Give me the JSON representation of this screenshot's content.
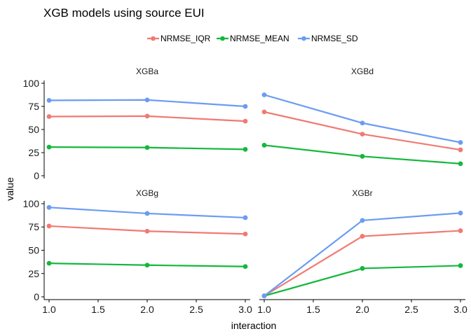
{
  "chart_data": {
    "type": "line",
    "title": "XGB models using source EUI",
    "xlabel": "interaction",
    "ylabel": "value",
    "xlim": [
      0.95,
      3.05
    ],
    "ylim": [
      -3,
      103
    ],
    "x_ticks": [
      1.0,
      1.5,
      2.0,
      2.5,
      3.0
    ],
    "x_tick_labels": [
      "1.0",
      "1.5",
      "2.0",
      "2.5",
      "3.0"
    ],
    "y_ticks": [
      0,
      25,
      50,
      75,
      100
    ],
    "y_tick_labels": [
      "0",
      "25",
      "50",
      "75",
      "100"
    ],
    "legend_position": "top",
    "series_meta": [
      {
        "name": "NRMSE_IQR",
        "color": "#F07A73"
      },
      {
        "name": "NRMSE_MEAN",
        "color": "#14B83C"
      },
      {
        "name": "NRMSE_SD",
        "color": "#6B9CF2"
      }
    ],
    "panels": [
      {
        "label": "XGBa",
        "x": [
          1,
          2,
          3
        ],
        "series": [
          {
            "name": "NRMSE_IQR",
            "values": [
              64,
              64.5,
              59
            ]
          },
          {
            "name": "NRMSE_MEAN",
            "values": [
              31,
              30.5,
              28.5
            ]
          },
          {
            "name": "NRMSE_SD",
            "values": [
              81.5,
              82,
              75
            ]
          }
        ]
      },
      {
        "label": "XGBd",
        "x": [
          1,
          2,
          3
        ],
        "series": [
          {
            "name": "NRMSE_IQR",
            "values": [
              69,
              45,
              28
            ]
          },
          {
            "name": "NRMSE_MEAN",
            "values": [
              33,
              21,
              13
            ]
          },
          {
            "name": "NRMSE_SD",
            "values": [
              87.5,
              57,
              36
            ]
          }
        ]
      },
      {
        "label": "XGBg",
        "x": [
          1,
          2,
          3
        ],
        "series": [
          {
            "name": "NRMSE_IQR",
            "values": [
              76,
              70.5,
              67.5
            ]
          },
          {
            "name": "NRMSE_MEAN",
            "values": [
              36,
              34,
              32.5
            ]
          },
          {
            "name": "NRMSE_SD",
            "values": [
              96,
              89.5,
              85
            ]
          }
        ]
      },
      {
        "label": "XGBr",
        "x": [
          1,
          2,
          3
        ],
        "series": [
          {
            "name": "NRMSE_IQR",
            "values": [
              1,
              65,
              71
            ]
          },
          {
            "name": "NRMSE_MEAN",
            "values": [
              1,
              30.5,
              33.5
            ]
          },
          {
            "name": "NRMSE_SD",
            "values": [
              1,
              82,
              90
            ]
          }
        ]
      }
    ]
  }
}
